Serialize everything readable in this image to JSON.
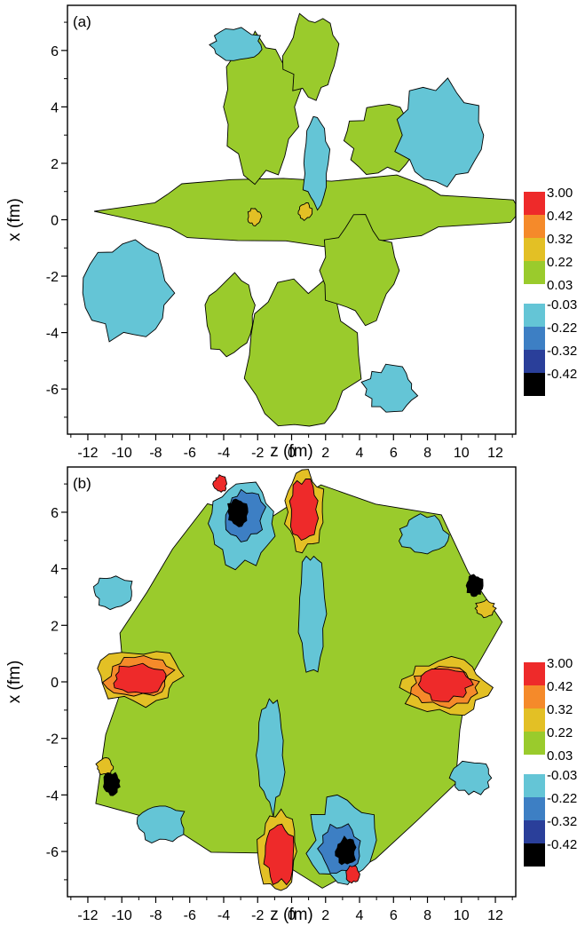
{
  "chart_data": [
    {
      "type": "heatmap",
      "panel_label": "(a)",
      "title": "",
      "xlabel": "z (fm)",
      "ylabel": "x (fm)",
      "xlim": [
        -13.2,
        13.2
      ],
      "ylim": [
        -7.6,
        7.6
      ],
      "xticks": [
        -12,
        -10,
        -8,
        -6,
        -4,
        -2,
        0,
        2,
        4,
        6,
        8,
        10,
        12
      ],
      "yticks": [
        -6,
        -4,
        -2,
        0,
        2,
        4,
        6
      ],
      "legend_position": "right",
      "contour_levels": {
        "positive": [
          "3.00",
          "0.42",
          "0.32",
          "0.22",
          "0.03"
        ],
        "negative": [
          "-0.03",
          "-0.22",
          "-0.32",
          "-0.42"
        ]
      },
      "colors": {
        "positive": [
          "#ee2a2a",
          "#f58a2a",
          "#e3c025",
          "#9acb2c"
        ],
        "negative": [
          "#64c5d6",
          "#3d7fc4",
          "#2a3f9a",
          "#000000"
        ]
      },
      "regions": [
        {
          "level": "0.03",
          "cx": 1.0,
          "cy": 0.3,
          "rx": 11.5,
          "ry": 1.3
        },
        {
          "level": "0.03",
          "cx": -1.8,
          "cy": 4.0,
          "rx": 2.4,
          "ry": 2.6
        },
        {
          "level": "0.03",
          "cx": 1.2,
          "cy": 5.8,
          "rx": 1.6,
          "ry": 1.5
        },
        {
          "level": "0.03",
          "cx": 0.6,
          "cy": -4.8,
          "rx": 3.4,
          "ry": 2.8
        },
        {
          "level": "0.03",
          "cx": 4.0,
          "cy": -1.8,
          "rx": 2.2,
          "ry": 1.8
        },
        {
          "level": "0.03",
          "cx": -3.6,
          "cy": -3.4,
          "rx": 1.6,
          "ry": 1.4
        },
        {
          "level": "0.03",
          "cx": 5.4,
          "cy": 2.8,
          "rx": 2.2,
          "ry": 1.2
        },
        {
          "level": "-0.03",
          "cx": 8.8,
          "cy": 3.0,
          "rx": 2.6,
          "ry": 1.9
        },
        {
          "level": "-0.03",
          "cx": -9.6,
          "cy": -2.6,
          "rx": 2.6,
          "ry": 1.8
        },
        {
          "level": "-0.03",
          "cx": 5.8,
          "cy": -6.0,
          "rx": 1.6,
          "ry": 0.8
        },
        {
          "level": "-0.03",
          "cx": -3.2,
          "cy": 6.2,
          "rx": 1.6,
          "ry": 0.6
        },
        {
          "level": "-0.03",
          "cx": 1.4,
          "cy": 2.0,
          "rx": 0.8,
          "ry": 1.6
        },
        {
          "level": "0.22",
          "cx": 0.8,
          "cy": 0.3,
          "rx": 0.4,
          "ry": 0.3
        },
        {
          "level": "0.22",
          "cx": -2.2,
          "cy": 0.1,
          "rx": 0.4,
          "ry": 0.3
        }
      ]
    },
    {
      "type": "heatmap",
      "panel_label": "(b)",
      "title": "",
      "xlabel": "z (fm)",
      "ylabel": "x (fm)",
      "xlim": [
        -13.2,
        13.2
      ],
      "ylim": [
        -7.6,
        7.6
      ],
      "xticks": [
        -12,
        -10,
        -8,
        -6,
        -4,
        -2,
        0,
        2,
        4,
        6,
        8,
        10,
        12
      ],
      "yticks": [
        -6,
        -4,
        -2,
        0,
        2,
        4,
        6
      ],
      "legend_position": "right",
      "contour_levels": {
        "positive": [
          "3.00",
          "0.42",
          "0.32",
          "0.22",
          "0.03"
        ],
        "negative": [
          "-0.03",
          "-0.22",
          "-0.32",
          "-0.42"
        ]
      },
      "colors": {
        "positive": [
          "#ee2a2a",
          "#f58a2a",
          "#e3c025",
          "#9acb2c"
        ],
        "negative": [
          "#64c5d6",
          "#3d7fc4",
          "#2a3f9a",
          "#000000"
        ]
      },
      "regions": [
        {
          "level": "0.03",
          "cx": 0.0,
          "cy": 0.0,
          "rx": 12.4,
          "ry": 7.2
        },
        {
          "level": "-0.03",
          "cx": -3.0,
          "cy": 5.6,
          "rx": 2.0,
          "ry": 1.5
        },
        {
          "level": "-0.03",
          "cx": 3.0,
          "cy": -5.6,
          "rx": 2.0,
          "ry": 1.5
        },
        {
          "level": "-0.03",
          "cx": 1.2,
          "cy": 2.4,
          "rx": 0.8,
          "ry": 2.2
        },
        {
          "level": "-0.03",
          "cx": -1.2,
          "cy": -2.6,
          "rx": 0.8,
          "ry": 2.0
        },
        {
          "level": "-0.03",
          "cx": -10.5,
          "cy": 3.2,
          "rx": 1.2,
          "ry": 0.6
        },
        {
          "level": "-0.03",
          "cx": 10.6,
          "cy": -3.4,
          "rx": 1.2,
          "ry": 0.6
        },
        {
          "level": "-0.03",
          "cx": 7.8,
          "cy": 5.2,
          "rx": 1.4,
          "ry": 0.7
        },
        {
          "level": "-0.03",
          "cx": -7.6,
          "cy": -5.0,
          "rx": 1.4,
          "ry": 0.7
        },
        {
          "level": "-0.22",
          "cx": -2.8,
          "cy": 5.9,
          "rx": 1.2,
          "ry": 0.9
        },
        {
          "level": "-0.22",
          "cx": 2.8,
          "cy": -5.9,
          "rx": 1.2,
          "ry": 0.9
        },
        {
          "level": "-0.42",
          "cx": -3.2,
          "cy": 6.0,
          "rx": 0.6,
          "ry": 0.5
        },
        {
          "level": "-0.42",
          "cx": 3.2,
          "cy": -6.0,
          "rx": 0.6,
          "ry": 0.5
        },
        {
          "level": "-0.42",
          "cx": -10.6,
          "cy": -3.6,
          "rx": 0.5,
          "ry": 0.4
        },
        {
          "level": "-0.42",
          "cx": 10.8,
          "cy": 3.4,
          "rx": 0.5,
          "ry": 0.4
        },
        {
          "level": "0.22",
          "cx": -9.0,
          "cy": 0.2,
          "rx": 2.6,
          "ry": 1.0
        },
        {
          "level": "0.22",
          "cx": 9.0,
          "cy": -0.2,
          "rx": 2.6,
          "ry": 1.0
        },
        {
          "level": "0.22",
          "cx": 0.8,
          "cy": 6.0,
          "rx": 1.2,
          "ry": 1.4
        },
        {
          "level": "0.22",
          "cx": -0.8,
          "cy": -6.0,
          "rx": 1.2,
          "ry": 1.4
        },
        {
          "level": "0.42",
          "cx": -9.0,
          "cy": 0.2,
          "rx": 2.0,
          "ry": 0.7
        },
        {
          "level": "0.42",
          "cx": 9.0,
          "cy": -0.2,
          "rx": 2.0,
          "ry": 0.7
        },
        {
          "level": "3.00",
          "cx": -9.0,
          "cy": 0.1,
          "rx": 1.6,
          "ry": 0.55
        },
        {
          "level": "3.00",
          "cx": 9.0,
          "cy": -0.1,
          "rx": 1.6,
          "ry": 0.55
        },
        {
          "level": "3.00",
          "cx": 0.7,
          "cy": 6.1,
          "rx": 0.9,
          "ry": 1.1
        },
        {
          "level": "3.00",
          "cx": -0.7,
          "cy": -6.1,
          "rx": 0.9,
          "ry": 1.1
        },
        {
          "level": "3.00",
          "cx": -4.2,
          "cy": 7.0,
          "rx": 0.4,
          "ry": 0.3
        },
        {
          "level": "3.00",
          "cx": 3.6,
          "cy": -6.8,
          "rx": 0.4,
          "ry": 0.3
        },
        {
          "level": "0.32",
          "cx": -11.0,
          "cy": -3.0,
          "rx": 0.5,
          "ry": 0.3
        },
        {
          "level": "0.32",
          "cx": 11.4,
          "cy": 2.6,
          "rx": 0.6,
          "ry": 0.3
        }
      ]
    }
  ]
}
